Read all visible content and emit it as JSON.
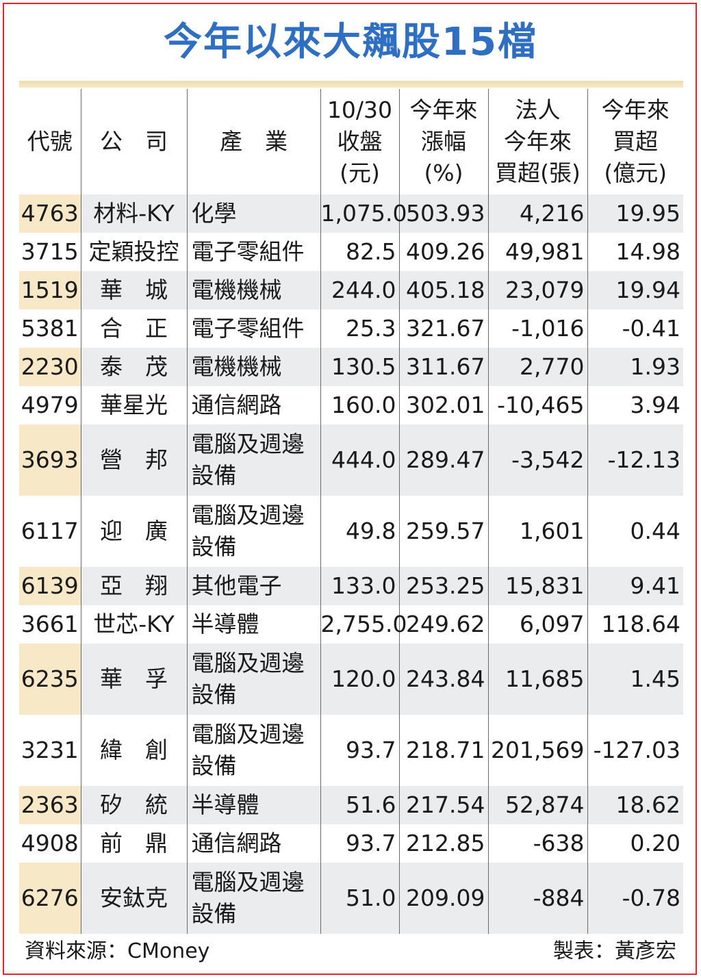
{
  "title": "今年以來大飆股15檔",
  "headers": [
    "代號",
    "公　司",
    "產　業",
    "10/30\n收盤\n(元)",
    "今年來\n漲幅\n(%)",
    "法人\n今年來\n買超(張)",
    "今年來\n買超\n(億元)"
  ],
  "rows": [
    {
      "code": "4763",
      "company": "材料-KY",
      "industry": "化學",
      "close": "1,075.0",
      "gain": "503.93",
      "inst_lots": "4,216",
      "inst_amount": "19.95"
    },
    {
      "code": "3715",
      "company": "定穎投控",
      "industry": "電子零組件",
      "close": "82.5",
      "gain": "409.26",
      "inst_lots": "49,981",
      "inst_amount": "14.98"
    },
    {
      "code": "1519",
      "company": "華　城",
      "industry": "電機機械",
      "close": "244.0",
      "gain": "405.18",
      "inst_lots": "23,079",
      "inst_amount": "19.94"
    },
    {
      "code": "5381",
      "company": "合　正",
      "industry": "電子零組件",
      "close": "25.3",
      "gain": "321.67",
      "inst_lots": "-1,016",
      "inst_amount": "-0.41"
    },
    {
      "code": "2230",
      "company": "泰　茂",
      "industry": "電機機械",
      "close": "130.5",
      "gain": "311.67",
      "inst_lots": "2,770",
      "inst_amount": "1.93"
    },
    {
      "code": "4979",
      "company": "華星光",
      "industry": "通信網路",
      "close": "160.0",
      "gain": "302.01",
      "inst_lots": "-10,465",
      "inst_amount": "3.94"
    },
    {
      "code": "3693",
      "company": "營　邦",
      "industry": "電腦及週邊設備",
      "close": "444.0",
      "gain": "289.47",
      "inst_lots": "-3,542",
      "inst_amount": "-12.13"
    },
    {
      "code": "6117",
      "company": "迎　廣",
      "industry": "電腦及週邊設備",
      "close": "49.8",
      "gain": "259.57",
      "inst_lots": "1,601",
      "inst_amount": "0.44"
    },
    {
      "code": "6139",
      "company": "亞　翔",
      "industry": "其他電子",
      "close": "133.0",
      "gain": "253.25",
      "inst_lots": "15,831",
      "inst_amount": "9.41"
    },
    {
      "code": "3661",
      "company": "世芯-KY",
      "industry": "半導體",
      "close": "2,755.0",
      "gain": "249.62",
      "inst_lots": "6,097",
      "inst_amount": "118.64"
    },
    {
      "code": "6235",
      "company": "華　孚",
      "industry": "電腦及週邊設備",
      "close": "120.0",
      "gain": "243.84",
      "inst_lots": "11,685",
      "inst_amount": "1.45"
    },
    {
      "code": "3231",
      "company": "緯　創",
      "industry": "電腦及週邊設備",
      "close": "93.7",
      "gain": "218.71",
      "inst_lots": "201,569",
      "inst_amount": "-127.03"
    },
    {
      "code": "2363",
      "company": "矽　統",
      "industry": "半導體",
      "close": "51.6",
      "gain": "217.54",
      "inst_lots": "52,874",
      "inst_amount": "18.62"
    },
    {
      "code": "4908",
      "company": "前　鼎",
      "industry": "通信網路",
      "close": "93.7",
      "gain": "212.85",
      "inst_lots": "-638",
      "inst_amount": "0.20"
    },
    {
      "code": "6276",
      "company": "安鈦克",
      "industry": "電腦及週邊設備",
      "close": "51.0",
      "gain": "209.09",
      "inst_lots": "-884",
      "inst_amount": "-0.78"
    }
  ],
  "footer": {
    "source": "資料來源：CMoney",
    "author": "製表：黃彥宏"
  },
  "colors": {
    "title": "#2e6fc4",
    "border": "#e8232a",
    "highlight_code": "#f7e9c8",
    "row_shade": "#ebecee"
  }
}
